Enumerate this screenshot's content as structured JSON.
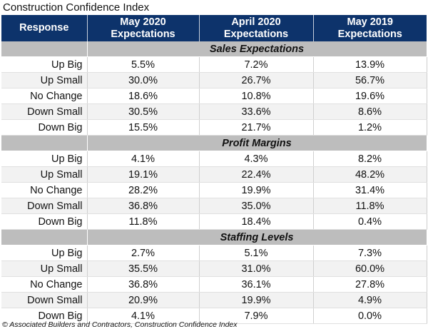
{
  "title": "Construction Confidence Index",
  "footer": "© Associated Builders and Contractors, Construction Confidence Index",
  "chart_data": {
    "type": "table",
    "title": "Construction Confidence Index",
    "columns": [
      {
        "line1": "Response",
        "line2": ""
      },
      {
        "line1": "May 2020",
        "line2": "Expectations"
      },
      {
        "line1": "April 2020",
        "line2": "Expectations"
      },
      {
        "line1": "May 2019",
        "line2": "Expectations"
      }
    ],
    "colors": {
      "header": "#0d336b",
      "section": "#bdbdbd",
      "alt_row": "#f2f2f2"
    },
    "sections": [
      {
        "name": "Sales Expectations",
        "rows": [
          {
            "response": "Up Big",
            "values": [
              "5.5%",
              "7.2%",
              "13.9%"
            ]
          },
          {
            "response": "Up Small",
            "values": [
              "30.0%",
              "26.7%",
              "56.7%"
            ]
          },
          {
            "response": "No Change",
            "values": [
              "18.6%",
              "10.8%",
              "19.6%"
            ]
          },
          {
            "response": "Down Small",
            "values": [
              "30.5%",
              "33.6%",
              "8.6%"
            ]
          },
          {
            "response": "Down Big",
            "values": [
              "15.5%",
              "21.7%",
              "1.2%"
            ]
          }
        ]
      },
      {
        "name": "Profit Margins",
        "rows": [
          {
            "response": "Up Big",
            "values": [
              "4.1%",
              "4.3%",
              "8.2%"
            ]
          },
          {
            "response": "Up Small",
            "values": [
              "19.1%",
              "22.4%",
              "48.2%"
            ]
          },
          {
            "response": "No Change",
            "values": [
              "28.2%",
              "19.9%",
              "31.4%"
            ]
          },
          {
            "response": "Down Small",
            "values": [
              "36.8%",
              "35.0%",
              "11.8%"
            ]
          },
          {
            "response": "Down Big",
            "values": [
              "11.8%",
              "18.4%",
              "0.4%"
            ]
          }
        ]
      },
      {
        "name": "Staffing Levels",
        "rows": [
          {
            "response": "Up Big",
            "values": [
              "2.7%",
              "5.1%",
              "7.3%"
            ]
          },
          {
            "response": "Up Small",
            "values": [
              "35.5%",
              "31.0%",
              "60.0%"
            ]
          },
          {
            "response": "No Change",
            "values": [
              "36.8%",
              "36.1%",
              "27.8%"
            ]
          },
          {
            "response": "Down Small",
            "values": [
              "20.9%",
              "19.9%",
              "4.9%"
            ]
          },
          {
            "response": "Down Big",
            "values": [
              "4.1%",
              "7.9%",
              "0.0%"
            ]
          }
        ]
      }
    ]
  }
}
